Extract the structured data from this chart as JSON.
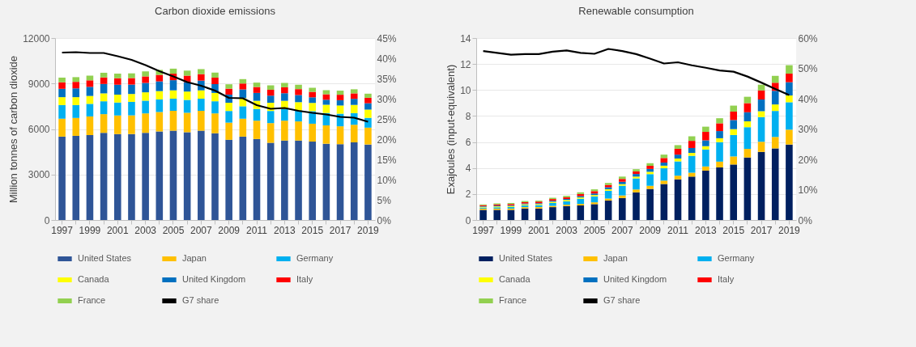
{
  "chart_data": [
    {
      "type": "bar",
      "stacked": true,
      "title": "Carbon dioxide emissions",
      "ylabel": "Million tonnes of carbon dioxide",
      "categories": [
        "1997",
        null,
        "1999",
        null,
        "2001",
        null,
        "2003",
        null,
        "2005",
        null,
        "2007",
        null,
        "2009",
        null,
        "2011",
        null,
        "2013",
        null,
        "2015",
        null,
        "2017",
        null,
        "2019"
      ],
      "series": [
        {
          "name": "United States",
          "color": "#2f5597",
          "values": [
            5500,
            5550,
            5600,
            5750,
            5670,
            5670,
            5750,
            5840,
            5890,
            5790,
            5890,
            5720,
            5290,
            5500,
            5340,
            5090,
            5240,
            5240,
            5170,
            5030,
            5000,
            5120,
            4980
          ]
        },
        {
          "name": "Japan",
          "color": "#ffc000",
          "values": [
            1180,
            1180,
            1230,
            1230,
            1230,
            1230,
            1280,
            1280,
            1310,
            1280,
            1310,
            1310,
            1130,
            1180,
            1210,
            1300,
            1310,
            1260,
            1180,
            1210,
            1180,
            1160,
            1110
          ]
        },
        {
          "name": "Germany",
          "color": "#00b0f0",
          "values": [
            900,
            850,
            830,
            850,
            850,
            890,
            840,
            830,
            800,
            850,
            800,
            800,
            770,
            820,
            770,
            800,
            770,
            730,
            830,
            820,
            830,
            770,
            650
          ]
        },
        {
          "name": "Canada",
          "color": "#ffff00",
          "values": [
            520,
            520,
            520,
            520,
            520,
            520,
            550,
            550,
            550,
            550,
            550,
            550,
            540,
            540,
            540,
            540,
            540,
            540,
            540,
            540,
            540,
            540,
            540
          ]
        },
        {
          "name": "United Kingdom",
          "color": "#0070c0",
          "values": [
            550,
            580,
            600,
            620,
            650,
            620,
            620,
            640,
            670,
            620,
            640,
            580,
            540,
            570,
            520,
            470,
            500,
            470,
            370,
            330,
            350,
            400,
            420
          ]
        },
        {
          "name": "Italy",
          "color": "#ff0000",
          "values": [
            430,
            430,
            430,
            430,
            430,
            430,
            430,
            430,
            430,
            430,
            430,
            430,
            390,
            390,
            390,
            390,
            390,
            390,
            360,
            360,
            360,
            360,
            360
          ]
        },
        {
          "name": "France",
          "color": "#92d050",
          "values": [
            310,
            310,
            310,
            310,
            310,
            310,
            330,
            330,
            330,
            330,
            330,
            330,
            290,
            290,
            290,
            290,
            290,
            290,
            270,
            270,
            270,
            270,
            270
          ]
        },
        {
          "name": "G7 share",
          "color": "#000000",
          "type": "line",
          "axis": "y2",
          "values": [
            41.4,
            41.5,
            41.3,
            41.3,
            40.5,
            39.6,
            38.3,
            36.8,
            35.5,
            34.1,
            33.2,
            32.0,
            30.2,
            30.1,
            28.4,
            27.5,
            27.7,
            27.0,
            26.5,
            26.1,
            25.5,
            25.3,
            24.3
          ]
        }
      ],
      "ylim": [
        0,
        12000
      ],
      "yticks": [
        0,
        3000,
        6000,
        9000,
        12000
      ],
      "y2lim": [
        0,
        45
      ],
      "y2ticks": [
        {
          "value": 0,
          "label": "0%"
        },
        {
          "value": 5,
          "label": "5%"
        },
        {
          "value": 10,
          "label": "10%"
        },
        {
          "value": 15,
          "label": "15%"
        },
        {
          "value": 20,
          "label": "20%"
        },
        {
          "value": 25,
          "label": "25%"
        },
        {
          "value": 30,
          "label": "30%"
        },
        {
          "value": 35,
          "label": "35%"
        },
        {
          "value": 40,
          "label": "40%"
        },
        {
          "value": 45,
          "label": "45%"
        }
      ],
      "grid": "y",
      "legend": "bottom"
    },
    {
      "type": "bar",
      "stacked": true,
      "title": "Renewable consumption",
      "ylabel": "Exajoules (input-equivalent)",
      "categories": [
        "1997",
        null,
        "1999",
        null,
        "2001",
        null,
        "2003",
        null,
        "2005",
        null,
        "2007",
        null,
        "2009",
        null,
        "2011",
        null,
        "2013",
        null,
        "2015",
        null,
        "2017",
        null,
        "2019"
      ],
      "series": [
        {
          "name": "United States",
          "color": "#002060",
          "values": [
            0.78,
            0.78,
            0.78,
            0.89,
            0.89,
            0.99,
            1.08,
            1.12,
            1.22,
            1.5,
            1.69,
            2.13,
            2.39,
            2.77,
            3.13,
            3.34,
            3.8,
            4.05,
            4.27,
            4.81,
            5.24,
            5.51,
            5.81
          ]
        },
        {
          "name": "Japan",
          "color": "#ffc000",
          "values": [
            0.1,
            0.1,
            0.1,
            0.1,
            0.1,
            0.1,
            0.1,
            0.12,
            0.14,
            0.15,
            0.2,
            0.22,
            0.24,
            0.26,
            0.28,
            0.3,
            0.32,
            0.44,
            0.62,
            0.66,
            0.78,
            0.88,
            1.14
          ]
        },
        {
          "name": "Germany",
          "color": "#00b0f0",
          "values": [
            0.08,
            0.1,
            0.12,
            0.14,
            0.16,
            0.22,
            0.26,
            0.4,
            0.46,
            0.6,
            0.75,
            0.85,
            0.9,
            0.95,
            1.1,
            1.3,
            1.3,
            1.5,
            1.65,
            1.67,
            1.9,
            2.0,
            2.11
          ]
        },
        {
          "name": "Canada",
          "color": "#ffff00",
          "values": [
            0.06,
            0.07,
            0.08,
            0.08,
            0.08,
            0.09,
            0.1,
            0.1,
            0.1,
            0.12,
            0.12,
            0.14,
            0.18,
            0.2,
            0.22,
            0.22,
            0.26,
            0.3,
            0.45,
            0.45,
            0.45,
            0.5,
            0.52
          ]
        },
        {
          "name": "United Kingdom",
          "color": "#0070c0",
          "values": [
            0.04,
            0.06,
            0.05,
            0.06,
            0.06,
            0.08,
            0.08,
            0.1,
            0.12,
            0.15,
            0.18,
            0.2,
            0.22,
            0.24,
            0.3,
            0.38,
            0.45,
            0.55,
            0.7,
            0.7,
            0.9,
            1.05,
            1.02
          ]
        },
        {
          "name": "Italy",
          "color": "#ff0000",
          "values": [
            0.08,
            0.09,
            0.1,
            0.1,
            0.12,
            0.13,
            0.13,
            0.16,
            0.18,
            0.18,
            0.22,
            0.2,
            0.24,
            0.35,
            0.45,
            0.55,
            0.65,
            0.6,
            0.65,
            0.7,
            0.7,
            0.62,
            0.66
          ]
        },
        {
          "name": "France",
          "color": "#92d050",
          "values": [
            0.06,
            0.08,
            0.08,
            0.09,
            0.09,
            0.1,
            0.11,
            0.13,
            0.14,
            0.15,
            0.18,
            0.17,
            0.2,
            0.26,
            0.28,
            0.35,
            0.4,
            0.39,
            0.46,
            0.49,
            0.44,
            0.53,
            0.65
          ]
        },
        {
          "name": "G7 share",
          "color": "#000000",
          "type": "line",
          "axis": "y2",
          "values": [
            55.7,
            55.1,
            54.5,
            54.7,
            54.7,
            55.5,
            55.9,
            55.1,
            54.8,
            56.4,
            55.7,
            54.7,
            53.2,
            51.6,
            52.0,
            51.0,
            50.2,
            49.3,
            48.9,
            47.3,
            45.3,
            43.2,
            41.2
          ]
        }
      ],
      "ylim": [
        0,
        14
      ],
      "yticks": [
        0,
        2,
        4,
        6,
        8,
        10,
        12,
        14
      ],
      "y2lim": [
        0,
        60
      ],
      "y2ticks": [
        {
          "value": 0,
          "label": "0%"
        },
        {
          "value": 10,
          "label": "10%"
        },
        {
          "value": 20,
          "label": "20%"
        },
        {
          "value": 30,
          "label": "30%"
        },
        {
          "value": 40,
          "label": "40%"
        },
        {
          "value": 50,
          "label": "50%"
        },
        {
          "value": 60,
          "label": "60%"
        }
      ],
      "grid": "y",
      "legend": "bottom"
    }
  ]
}
